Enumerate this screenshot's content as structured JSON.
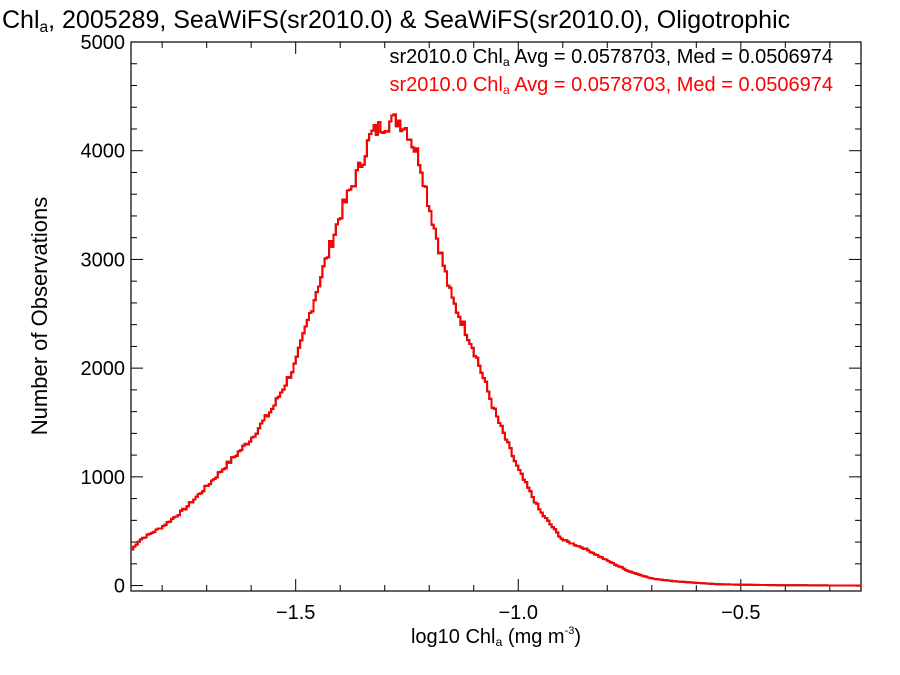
{
  "title": {
    "prefix": "Chl",
    "sub": "a",
    "rest": ", 2005289, SeaWiFS(sr2010.0) & SeaWiFS(sr2010.0), Oligotrophic"
  },
  "legend": [
    {
      "pre": "sr2010.0 Chl",
      "sub": "a",
      "post": " Avg = 0.0578703, Med = 0.0506974",
      "color": "#000000"
    },
    {
      "pre": "sr2010.0 Chl",
      "sub": "a",
      "post": " Avg = 0.0578703, Med = 0.0506974",
      "color": "#ff0000"
    }
  ],
  "ylabel": "Number of Observations",
  "xlabel": {
    "pre": "log10 Chl",
    "sub": "a",
    "mid": " (mg m",
    "sup": "-3",
    "post": ")"
  },
  "chart_data": {
    "type": "line",
    "step": true,
    "xlim": [
      -1.87,
      -0.23
    ],
    "ylim": [
      -50,
      5000
    ],
    "xticks": [
      -1.5,
      -1.0,
      -0.5
    ],
    "xtick_labels": [
      "−1.5",
      "−1.0",
      "−0.5"
    ],
    "yticks": [
      0,
      1000,
      2000,
      3000,
      4000,
      5000
    ],
    "ytick_labels": [
      "0",
      "1000",
      "2000",
      "3000",
      "4000",
      "5000"
    ],
    "series": [
      {
        "color": "#000000",
        "x": [
          -1.87,
          -1.85,
          -1.8,
          -1.75,
          -1.7,
          -1.65,
          -1.6,
          -1.55,
          -1.5,
          -1.45,
          -1.4,
          -1.36,
          -1.33,
          -1.3,
          -1.28,
          -1.27,
          -1.25,
          -1.22,
          -1.2,
          -1.15,
          -1.1,
          -1.05,
          -1.0,
          -0.95,
          -0.9,
          -0.85,
          -0.8,
          -0.75,
          -0.7,
          -0.65,
          -0.6,
          -0.55,
          -0.5,
          -0.45,
          -0.4,
          -0.35,
          -0.3,
          -0.23
        ],
        "y": [
          320,
          420,
          540,
          700,
          910,
          1130,
          1350,
          1640,
          2040,
          2750,
          3410,
          3800,
          4150,
          4250,
          4270,
          4290,
          4200,
          3900,
          3500,
          2650,
          2180,
          1570,
          1070,
          680,
          420,
          340,
          230,
          130,
          65,
          40,
          25,
          12,
          8,
          5,
          3,
          2,
          1,
          0
        ]
      },
      {
        "color": "#ff0000",
        "x": [
          -1.87,
          -1.85,
          -1.8,
          -1.75,
          -1.7,
          -1.65,
          -1.6,
          -1.55,
          -1.5,
          -1.45,
          -1.4,
          -1.36,
          -1.33,
          -1.3,
          -1.28,
          -1.27,
          -1.25,
          -1.22,
          -1.2,
          -1.15,
          -1.1,
          -1.05,
          -1.0,
          -0.95,
          -0.9,
          -0.85,
          -0.8,
          -0.75,
          -0.7,
          -0.65,
          -0.6,
          -0.55,
          -0.5,
          -0.45,
          -0.4,
          -0.35,
          -0.3,
          -0.23
        ],
        "y": [
          320,
          420,
          540,
          700,
          910,
          1130,
          1350,
          1640,
          2040,
          2750,
          3410,
          3800,
          4150,
          4250,
          4270,
          4290,
          4200,
          3900,
          3500,
          2650,
          2180,
          1570,
          1070,
          680,
          420,
          340,
          230,
          130,
          65,
          40,
          25,
          12,
          8,
          5,
          3,
          2,
          1,
          0
        ]
      }
    ]
  }
}
